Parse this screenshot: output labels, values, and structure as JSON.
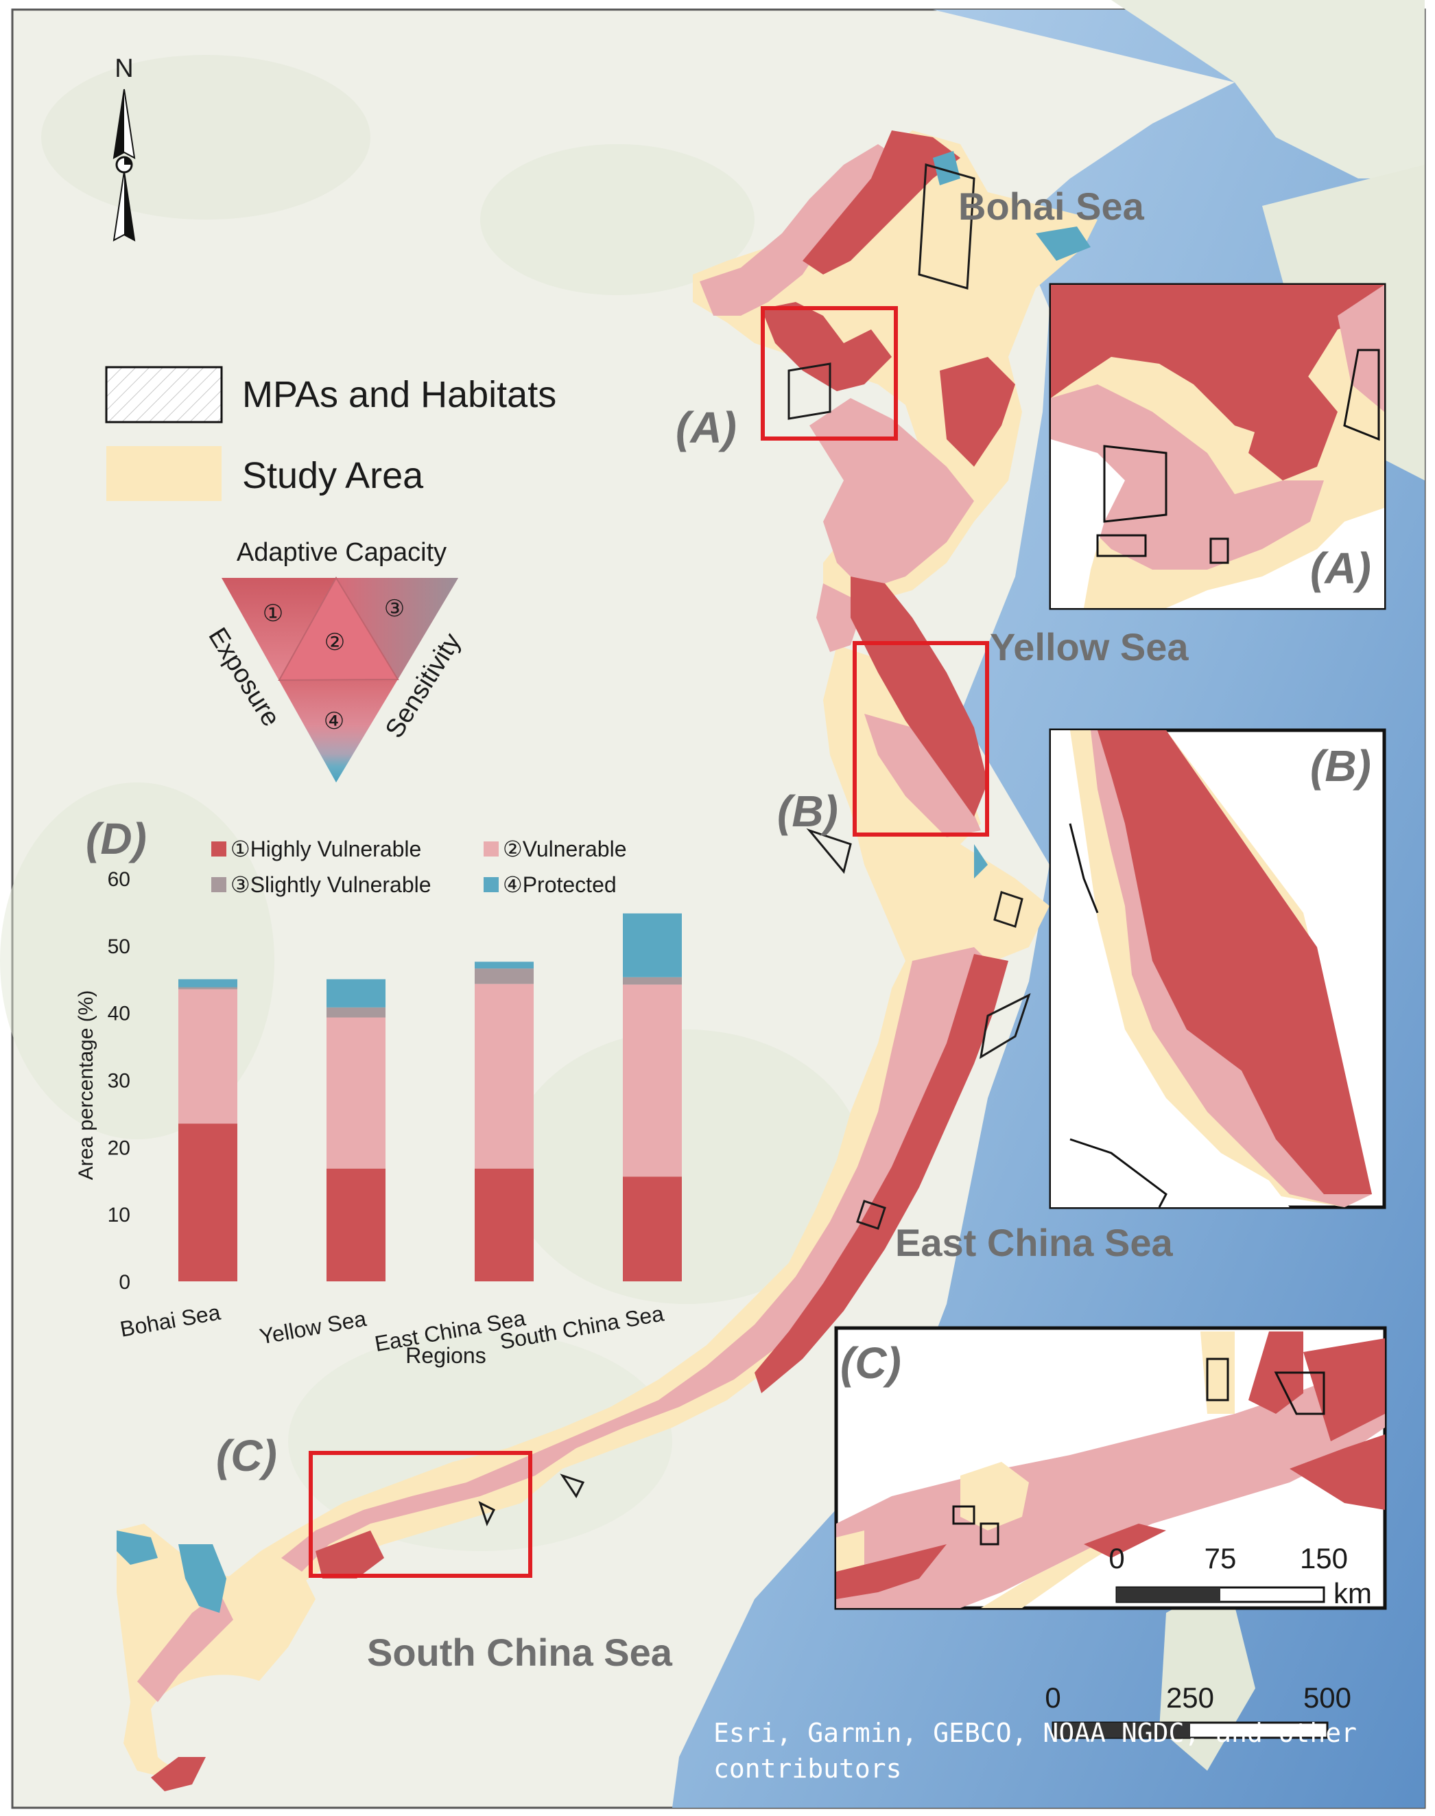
{
  "north_arrow": {
    "label": "N"
  },
  "legend": {
    "mpa_label": "MPAs and Habitats",
    "study_area_label": "Study Area"
  },
  "triangle": {
    "top_label": "Adaptive Capacity",
    "left_label": "Exposure",
    "right_label": "Sensitivity",
    "markers": [
      "①",
      "②",
      "③",
      "④"
    ]
  },
  "seas": {
    "bohai": "Bohai Sea",
    "yellow": "Yellow Sea",
    "east_china": "East China Sea",
    "south_china": "South China Sea"
  },
  "panels": {
    "a": "(A)",
    "b": "(B)",
    "c": "(C)",
    "d": "(D)"
  },
  "scalebar_inset": {
    "ticks": [
      "0",
      "75",
      "150"
    ],
    "unit": "km"
  },
  "scalebar_main": {
    "ticks": [
      "0",
      "250",
      "500"
    ]
  },
  "attribution": {
    "line1": "Esri, Garmin, GEBCO, NOAA NGDC, and other",
    "line2": "contributors"
  },
  "colors": {
    "highly_vulnerable": "#cc5255",
    "vulnerable": "#e9acaf",
    "slightly_vulnerable": "#a8999c",
    "protected": "#5aa8c2",
    "study_area": "#fbe8bc",
    "frame_red": "#e01e23",
    "ocean": "#9ec2e2",
    "land": "#eef0e6"
  },
  "chart_data": {
    "type": "bar",
    "stacked": true,
    "categories": [
      "Bohai Sea",
      "Yellow Sea",
      "East China Sea",
      "South China Sea"
    ],
    "series": [
      {
        "name": "①Highly Vulnerable",
        "values": [
          23.5,
          16.8,
          16.8,
          15.6
        ]
      },
      {
        "name": "②Vulnerable",
        "values": [
          20.0,
          22.5,
          27.5,
          28.6
        ]
      },
      {
        "name": "③Slightly Vulnerable",
        "values": [
          0.3,
          1.5,
          2.3,
          1.1
        ]
      },
      {
        "name": "④Protected",
        "values": [
          1.2,
          4.2,
          1.0,
          9.5
        ]
      }
    ],
    "xlabel": "Regions",
    "ylabel": "Area percentage  (%)",
    "ylim": [
      0,
      60
    ],
    "yticks": [
      "0",
      "10",
      "20",
      "30",
      "40",
      "50",
      "60"
    ],
    "legend_position": "top"
  }
}
